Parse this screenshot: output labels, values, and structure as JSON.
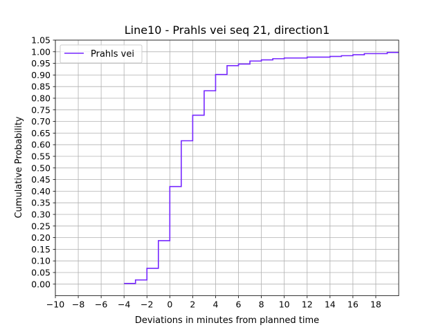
{
  "chart_data": {
    "type": "line",
    "drawstyle": "steps-post",
    "title": "Line10 - Prahls vei seq 21, direction1",
    "xlabel": "Deviations in minutes from planned time",
    "ylabel": "Cumulative Probability",
    "xlim": [
      -10,
      20
    ],
    "ylim": [
      -0.05,
      1.05
    ],
    "xticks": [
      -10,
      -8,
      -6,
      -4,
      -2,
      0,
      2,
      4,
      6,
      8,
      10,
      12,
      14,
      16,
      18
    ],
    "xtick_labels": [
      "−10",
      "−8",
      "−6",
      "−4",
      "−2",
      "0",
      "2",
      "4",
      "6",
      "8",
      "10",
      "12",
      "14",
      "16",
      "18"
    ],
    "yticks": [
      0,
      0.05,
      0.1,
      0.15,
      0.2,
      0.25,
      0.3,
      0.35,
      0.4,
      0.45,
      0.5,
      0.55,
      0.6,
      0.65,
      0.7,
      0.75,
      0.8,
      0.85,
      0.9,
      0.95,
      1.0,
      1.05
    ],
    "ytick_labels": [
      "0.00",
      "0.05",
      "0.10",
      "0.15",
      "0.20",
      "0.25",
      "0.30",
      "0.35",
      "0.40",
      "0.45",
      "0.50",
      "0.55",
      "0.60",
      "0.65",
      "0.70",
      "0.75",
      "0.80",
      "0.85",
      "0.90",
      "0.95",
      "1.00",
      "1.05"
    ],
    "grid": true,
    "legend_position": "upper-left",
    "series": [
      {
        "name": "Prahls vei",
        "color": "#7526ff",
        "x": [
          -4,
          -3,
          -2,
          -1,
          0,
          1,
          2,
          3,
          4,
          5,
          6,
          7,
          8,
          9,
          10,
          12,
          14,
          15,
          16,
          17,
          19,
          20
        ],
        "y": [
          0.003,
          0.018,
          0.068,
          0.187,
          0.42,
          0.617,
          0.727,
          0.832,
          0.902,
          0.94,
          0.947,
          0.96,
          0.965,
          0.97,
          0.973,
          0.977,
          0.98,
          0.983,
          0.987,
          0.992,
          0.997,
          0.997
        ]
      }
    ]
  }
}
